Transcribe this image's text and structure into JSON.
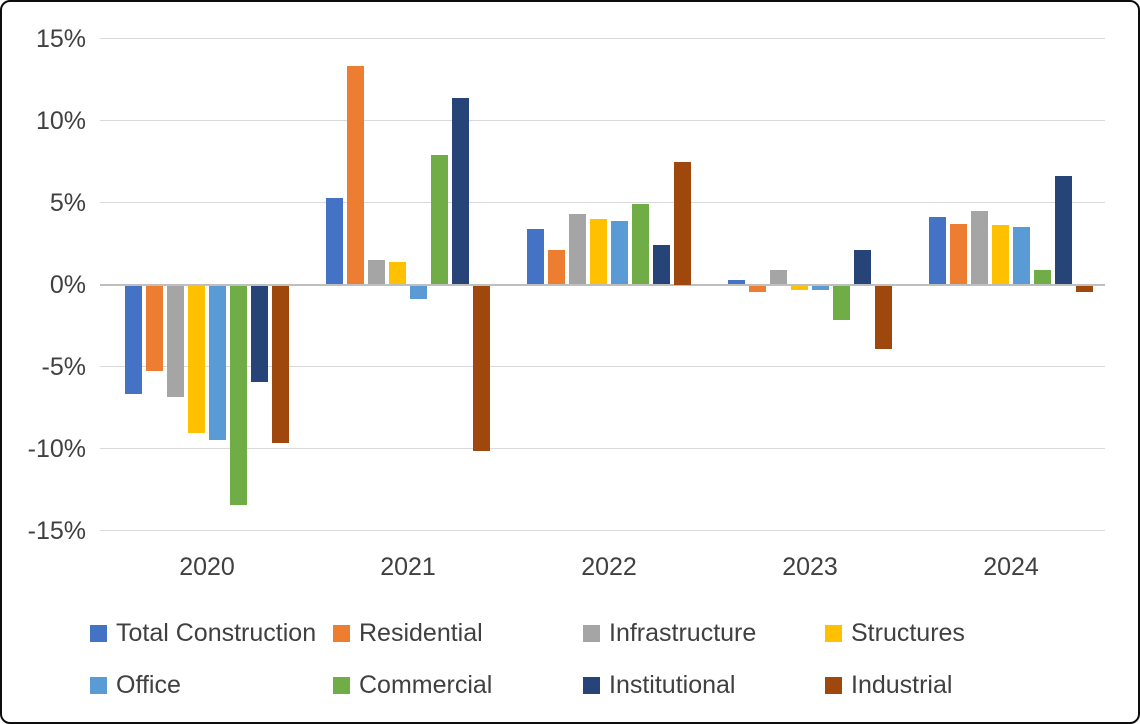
{
  "chart_data": {
    "type": "bar",
    "title": "",
    "categories": [
      "2020",
      "2021",
      "2022",
      "2023",
      "2024"
    ],
    "series": [
      {
        "name": "Total Construction",
        "color": "#4472C4",
        "values": [
          -6.6,
          5.3,
          3.4,
          0.3,
          4.1
        ]
      },
      {
        "name": "Residential",
        "color": "#ED7D31",
        "values": [
          -5.2,
          13.3,
          2.1,
          -0.4,
          3.7
        ]
      },
      {
        "name": "Infrastructure",
        "color": "#A5A5A5",
        "values": [
          -6.8,
          1.5,
          4.3,
          0.9,
          4.5
        ]
      },
      {
        "name": "Structures",
        "color": "#FFC000",
        "values": [
          -9.0,
          1.4,
          4.0,
          -0.3,
          3.6
        ]
      },
      {
        "name": "Office",
        "color": "#5B9BD5",
        "values": [
          -9.4,
          -0.8,
          3.9,
          -0.3,
          3.5
        ]
      },
      {
        "name": "Commercial",
        "color": "#70AD47",
        "values": [
          -13.4,
          7.9,
          4.9,
          -2.1,
          0.9
        ]
      },
      {
        "name": "Institutional",
        "color": "#264478",
        "values": [
          -5.9,
          11.4,
          2.4,
          2.1,
          6.6
        ]
      },
      {
        "name": "Industrial",
        "color": "#9E480E",
        "values": [
          -9.6,
          -10.1,
          7.5,
          -3.9,
          -0.4
        ]
      }
    ],
    "y_axis": {
      "ticks": [
        "15%",
        "10%",
        "5%",
        "0%",
        "-5%",
        "-10%",
        "-15%"
      ],
      "tick_values": [
        15,
        10,
        5,
        0,
        -5,
        -10,
        -15
      ],
      "ylim": [
        -15,
        15
      ],
      "grid": true
    },
    "xlabel": "",
    "ylabel": "",
    "legend": {
      "position": "bottom",
      "rows": [
        [
          "Total Construction",
          "Residential",
          "Infrastructure",
          "Structures"
        ],
        [
          "Office",
          "Commercial",
          "Institutional",
          "Industrial"
        ]
      ]
    }
  },
  "colors": {
    "background": "#FFFFFF",
    "frame_border": "#0D0D0D",
    "gridline": "#D9D9D9",
    "zero_line": "#BFBFBF",
    "axis_text": "#404040"
  }
}
